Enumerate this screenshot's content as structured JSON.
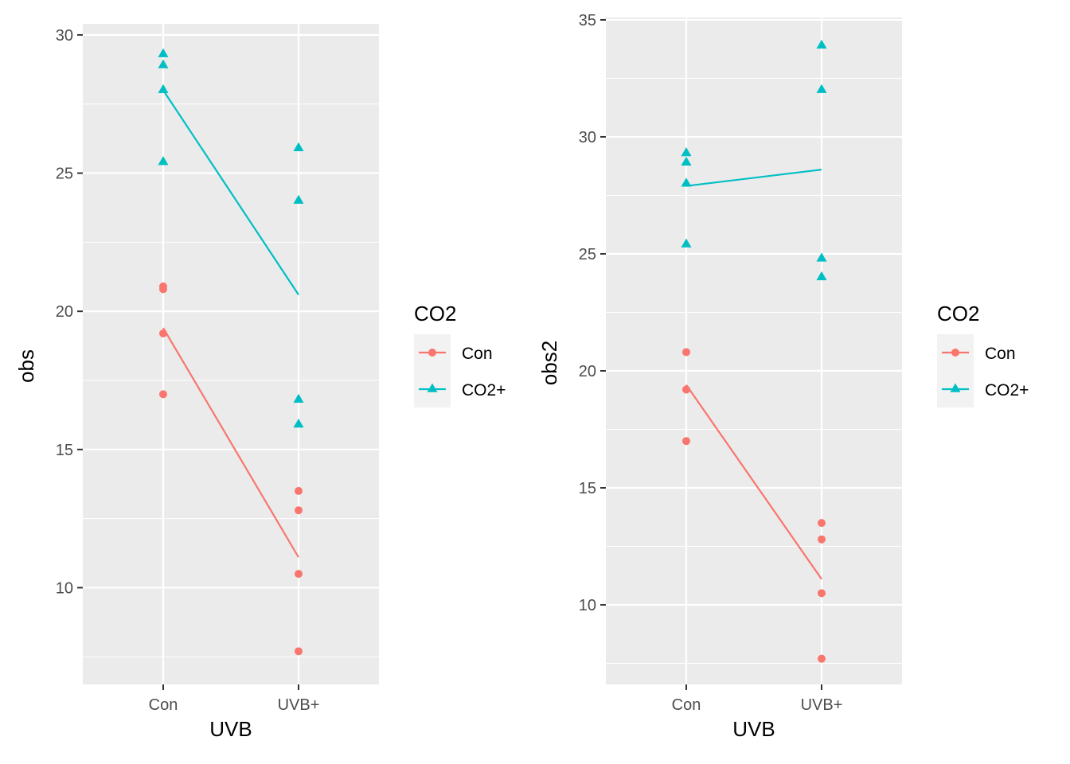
{
  "colors": {
    "con": "#F8766D",
    "co2plus": "#00BFC4",
    "panel": "#EBEBEB",
    "grid": "#FFFFFF"
  },
  "chart_data": [
    {
      "type": "scatter",
      "xlabel": "UVB",
      "ylabel": "obs",
      "categories": [
        "Con",
        "UVB+"
      ],
      "ylim": [
        6.5,
        30.4
      ],
      "yticks": [
        10,
        15,
        20,
        25,
        30
      ],
      "legend": {
        "title": "CO2",
        "position": "right",
        "entries": [
          "Con",
          "CO2+"
        ]
      },
      "series": [
        {
          "name": "Con",
          "shape": "circle",
          "color": "#F8766D",
          "points": [
            [
              "Con",
              20.8
            ],
            [
              "Con",
              20.9
            ],
            [
              "Con",
              19.2
            ],
            [
              "Con",
              17.0
            ],
            [
              "UVB+",
              13.5
            ],
            [
              "UVB+",
              12.8
            ],
            [
              "UVB+",
              10.5
            ],
            [
              "UVB+",
              7.7
            ]
          ],
          "line": [
            [
              "Con",
              19.4
            ],
            [
              "UVB+",
              11.1
            ]
          ]
        },
        {
          "name": "CO2+",
          "shape": "triangle",
          "color": "#00BFC4",
          "points": [
            [
              "Con",
              29.3
            ],
            [
              "Con",
              28.9
            ],
            [
              "Con",
              28.0
            ],
            [
              "Con",
              25.4
            ],
            [
              "UVB+",
              25.9
            ],
            [
              "UVB+",
              24.0
            ],
            [
              "UVB+",
              16.8
            ],
            [
              "UVB+",
              15.9
            ]
          ],
          "line": [
            [
              "Con",
              28.0
            ],
            [
              "UVB+",
              20.6
            ]
          ]
        }
      ]
    },
    {
      "type": "scatter",
      "xlabel": "UVB",
      "ylabel": "obs2",
      "categories": [
        "Con",
        "UVB+"
      ],
      "ylim": [
        6.6,
        35.1
      ],
      "yticks": [
        10,
        15,
        20,
        25,
        30,
        35
      ],
      "legend": {
        "title": "CO2",
        "position": "right",
        "entries": [
          "Con",
          "CO2+"
        ]
      },
      "series": [
        {
          "name": "Con",
          "shape": "circle",
          "color": "#F8766D",
          "points": [
            [
              "Con",
              20.8
            ],
            [
              "Con",
              19.2
            ],
            [
              "Con",
              19.2
            ],
            [
              "Con",
              17.0
            ],
            [
              "UVB+",
              13.5
            ],
            [
              "UVB+",
              12.8
            ],
            [
              "UVB+",
              10.5
            ],
            [
              "UVB+",
              7.7
            ]
          ],
          "line": [
            [
              "Con",
              19.4
            ],
            [
              "UVB+",
              11.1
            ]
          ]
        },
        {
          "name": "CO2+",
          "shape": "triangle",
          "color": "#00BFC4",
          "points": [
            [
              "Con",
              29.3
            ],
            [
              "Con",
              28.9
            ],
            [
              "Con",
              28.0
            ],
            [
              "Con",
              25.4
            ],
            [
              "UVB+",
              33.9
            ],
            [
              "UVB+",
              32.0
            ],
            [
              "UVB+",
              24.8
            ],
            [
              "UVB+",
              24.0
            ]
          ],
          "line": [
            [
              "Con",
              27.9
            ],
            [
              "UVB+",
              28.6
            ]
          ]
        }
      ]
    }
  ]
}
